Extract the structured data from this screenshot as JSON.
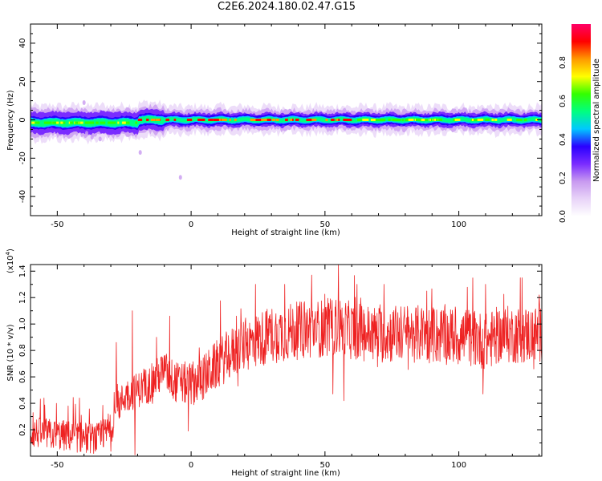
{
  "title": "C2E6.2024.180.02.47.G15",
  "colors": {
    "snr_line": "#ee2222",
    "colormap": [
      "#ffffff",
      "#e8d4f8",
      "#c89af0",
      "#7a2cff",
      "#2a00ff",
      "#00c8ff",
      "#00ff80",
      "#33ff00",
      "#ffff00",
      "#ff9900",
      "#ff0000",
      "#ff0066"
    ]
  },
  "chart_data": [
    {
      "type": "heatmap",
      "xlabel": "Height of straight line (km)",
      "ylabel": "Frequency (Hz)",
      "xlim": [
        -60,
        131
      ],
      "ylim": [
        -50,
        50
      ],
      "x_ticks": [
        -50,
        0,
        50,
        100
      ],
      "y_ticks": [
        -40,
        -20,
        0,
        20,
        40
      ],
      "center_frequency": 0,
      "band_halfwidth_hz": [
        3.5,
        2.5
      ],
      "colorbar": {
        "label": "Normalized spectral amplitude",
        "range": [
          0.0,
          1.0
        ],
        "ticks": [
          "0.0",
          "0.2",
          "0.4",
          "0.6",
          "0.8"
        ]
      },
      "scatter_outliers": [
        {
          "x": -37,
          "y": -9
        },
        {
          "x": -34,
          "y": -10
        },
        {
          "x": -39,
          "y": -7
        },
        {
          "x": -40,
          "y": 9
        },
        {
          "x": -19,
          "y": -17
        },
        {
          "x": -4,
          "y": -30
        }
      ]
    },
    {
      "type": "line",
      "xlabel": "Height of straight line (km)",
      "ylabel": "SNR (10 * v/v)",
      "y_scale_label": "(x10",
      "y_scale_exponent": "4",
      "y_scale_close": ")",
      "xlim": [
        -60,
        131
      ],
      "ylim": [
        0.0,
        1.45
      ],
      "x_ticks": [
        -50,
        0,
        50,
        100
      ],
      "y_ticks": [
        0.2,
        0.4,
        0.6,
        0.8,
        1.0,
        1.2,
        1.4
      ],
      "series": [
        {
          "trend_x": [
            -60,
            -50,
            -40,
            -35,
            -30,
            -28,
            -25,
            -20,
            -15,
            -10,
            -8,
            -5,
            0,
            5,
            10,
            15,
            20,
            25,
            30,
            40,
            50,
            55,
            60,
            70,
            80,
            90,
            100,
            105,
            110,
            115,
            120,
            131
          ],
          "trend_y": [
            0.18,
            0.16,
            0.14,
            0.13,
            0.2,
            0.35,
            0.45,
            0.5,
            0.55,
            0.65,
            0.6,
            0.55,
            0.55,
            0.6,
            0.7,
            0.78,
            0.84,
            0.88,
            0.92,
            0.95,
            0.97,
            0.98,
            0.95,
            0.92,
            0.93,
            0.92,
            0.9,
            0.9,
            0.86,
            0.92,
            0.92,
            0.92
          ],
          "peaks": [
            {
              "x": -59,
              "y": 0.33
            },
            {
              "x": -55,
              "y": 0.44
            },
            {
              "x": -46,
              "y": 0.38
            },
            {
              "x": -41,
              "y": 0.31
            },
            {
              "x": -31,
              "y": 0.32
            },
            {
              "x": -28,
              "y": 0.86
            },
            {
              "x": -22,
              "y": 1.1
            },
            {
              "x": -16,
              "y": 0.62
            },
            {
              "x": -13,
              "y": 0.9
            },
            {
              "x": -8,
              "y": 1.06
            },
            {
              "x": -4,
              "y": 0.58
            },
            {
              "x": 3,
              "y": 0.82
            },
            {
              "x": 17,
              "y": 1.06
            },
            {
              "x": 24,
              "y": 1.3
            },
            {
              "x": 35,
              "y": 1.3
            },
            {
              "x": 45,
              "y": 1.37
            },
            {
              "x": 55,
              "y": 1.45
            },
            {
              "x": 62,
              "y": 1.3
            },
            {
              "x": 72,
              "y": 1.3
            },
            {
              "x": 88,
              "y": 1.25
            },
            {
              "x": 110,
              "y": 1.3
            },
            {
              "x": 123,
              "y": 1.35
            },
            {
              "x": 130,
              "y": 1.22
            }
          ],
          "dips": [
            {
              "x": -21,
              "y": 0.01
            },
            {
              "x": -1,
              "y": 0.19
            },
            {
              "x": 53,
              "y": 0.47
            },
            {
              "x": 57,
              "y": 0.42
            },
            {
              "x": 109,
              "y": 0.47
            },
            {
              "x": 128,
              "y": 0.66
            }
          ]
        }
      ]
    }
  ]
}
